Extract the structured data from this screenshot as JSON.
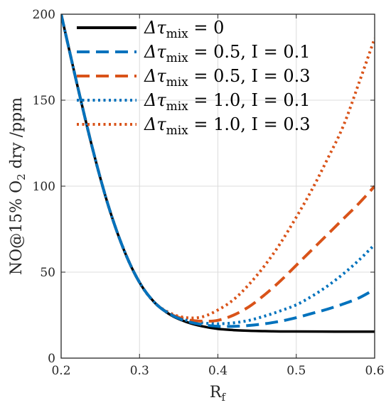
{
  "chart_data": {
    "type": "line",
    "title": "",
    "xlabel": "R_f",
    "xlabel_parts": {
      "main": "R",
      "sub": "f"
    },
    "ylabel": "NO@15% O₂ dry /ppm",
    "ylabel_parts": {
      "before": "NO@15% O",
      "sub": "2",
      "after": " dry /ppm"
    },
    "xlim": [
      0.2,
      0.6
    ],
    "ylim": [
      0,
      200
    ],
    "xticks": [
      "0.2",
      "0.3",
      "0.4",
      "0.5",
      "0.6"
    ],
    "yticks": [
      "0",
      "50",
      "100",
      "150",
      "200"
    ],
    "grid": true,
    "legend_position": "top",
    "series": [
      {
        "name": "Δτ_mix = 0",
        "label": {
          "delta": "Δτ",
          "sub": "mix",
          "rest": " = 0"
        },
        "color": "#000000",
        "style": "solid",
        "x": [
          0.2,
          0.22,
          0.24,
          0.26,
          0.28,
          0.3,
          0.32,
          0.34,
          0.36,
          0.38,
          0.4,
          0.42,
          0.44,
          0.46,
          0.48,
          0.5,
          0.55,
          0.6
        ],
        "y": [
          200,
          160,
          122,
          89,
          63,
          44,
          32,
          25,
          21,
          18.5,
          17,
          16.3,
          15.9,
          15.7,
          15.5,
          15.5,
          15.4,
          15.4
        ]
      },
      {
        "name": "Δτ_mix = 0.5, I = 0.1",
        "label": {
          "delta": "Δτ",
          "sub": "mix",
          "rest": " = 0.5, I = 0.1"
        },
        "color": "#0072BD",
        "style": "dashed",
        "x": [
          0.2,
          0.22,
          0.24,
          0.26,
          0.28,
          0.3,
          0.32,
          0.34,
          0.36,
          0.38,
          0.4,
          0.42,
          0.44,
          0.46,
          0.48,
          0.5,
          0.52,
          0.54,
          0.56,
          0.58,
          0.6
        ],
        "y": [
          200,
          160,
          122,
          89,
          63,
          44,
          32,
          25.3,
          21.5,
          19.5,
          18.5,
          18.5,
          19,
          20,
          21.5,
          23.5,
          26,
          28.5,
          31.5,
          35,
          40
        ]
      },
      {
        "name": "Δτ_mix = 0.5, I = 0.3",
        "label": {
          "delta": "Δτ",
          "sub": "mix",
          "rest": " = 0.5, I = 0.3"
        },
        "color": "#D95319",
        "style": "dashed",
        "x": [
          0.2,
          0.22,
          0.24,
          0.26,
          0.28,
          0.3,
          0.32,
          0.34,
          0.36,
          0.38,
          0.4,
          0.42,
          0.44,
          0.46,
          0.48,
          0.5,
          0.52,
          0.54,
          0.56,
          0.58,
          0.6
        ],
        "y": [
          200,
          160,
          122,
          89,
          63,
          44,
          32,
          25.5,
          22.5,
          21.5,
          22,
          25,
          30,
          37,
          45,
          54,
          63,
          72,
          81,
          90,
          100
        ]
      },
      {
        "name": "Δτ_mix = 1.0, I = 0.1",
        "label": {
          "delta": "Δτ",
          "sub": "mix",
          "rest": " = 1.0, I = 0.1"
        },
        "color": "#0072BD",
        "style": "dotted",
        "x": [
          0.2,
          0.22,
          0.24,
          0.26,
          0.28,
          0.3,
          0.32,
          0.34,
          0.36,
          0.38,
          0.4,
          0.42,
          0.44,
          0.46,
          0.48,
          0.5,
          0.52,
          0.54,
          0.56,
          0.58,
          0.6
        ],
        "y": [
          200,
          160,
          122,
          89,
          63,
          44,
          32,
          25.5,
          22,
          20.5,
          20,
          20.5,
          22,
          24.5,
          27.5,
          31,
          36,
          42,
          49,
          57,
          66
        ]
      },
      {
        "name": "Δτ_mix = 1.0, I = 0.3",
        "label": {
          "delta": "Δτ",
          "sub": "mix",
          "rest": " = 1.0, I = 0.3"
        },
        "color": "#D95319",
        "style": "dotted",
        "x": [
          0.2,
          0.22,
          0.24,
          0.26,
          0.28,
          0.3,
          0.32,
          0.34,
          0.36,
          0.38,
          0.4,
          0.42,
          0.44,
          0.46,
          0.48,
          0.5,
          0.52,
          0.54,
          0.56,
          0.58,
          0.6
        ],
        "y": [
          200,
          160,
          122,
          89,
          63,
          44,
          32,
          26,
          23.5,
          24,
          28,
          34,
          43,
          54,
          67,
          82,
          98,
          116,
          135,
          160,
          186
        ]
      }
    ]
  }
}
